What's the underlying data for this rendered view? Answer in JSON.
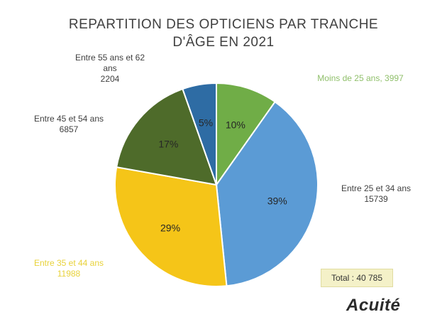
{
  "chart_data": {
    "type": "pie",
    "title_lines": [
      "REPARTITION DES OPTICIENS PAR TRANCHE",
      "D'ÂGE EN 2021"
    ],
    "slices": [
      {
        "label": "Moins de 25 ans",
        "value_text": "3997",
        "value": 3997,
        "percent_label": "10%",
        "color": "#70ad47"
      },
      {
        "label": "Entre 25 et 34 ans",
        "value_text": "15739",
        "value": 15739,
        "percent_label": "39%",
        "color": "#5b9bd5"
      },
      {
        "label": "Entre 35 et 44 ans",
        "value_text": "11988",
        "value": 11988,
        "percent_label": "29%",
        "color": "#f5c518"
      },
      {
        "label": "Entre 45 et 54 ans",
        "value_text": "6857",
        "value": 6857,
        "percent_label": "17%",
        "color": "#4e6b2a"
      },
      {
        "label": "Entre 55 ans et 62 ans",
        "value_text": "2204",
        "value": 2204,
        "percent_label": "5%",
        "color": "#2e6ca4"
      }
    ],
    "total_label": "Total : 40 785"
  },
  "brand": "Acuité"
}
